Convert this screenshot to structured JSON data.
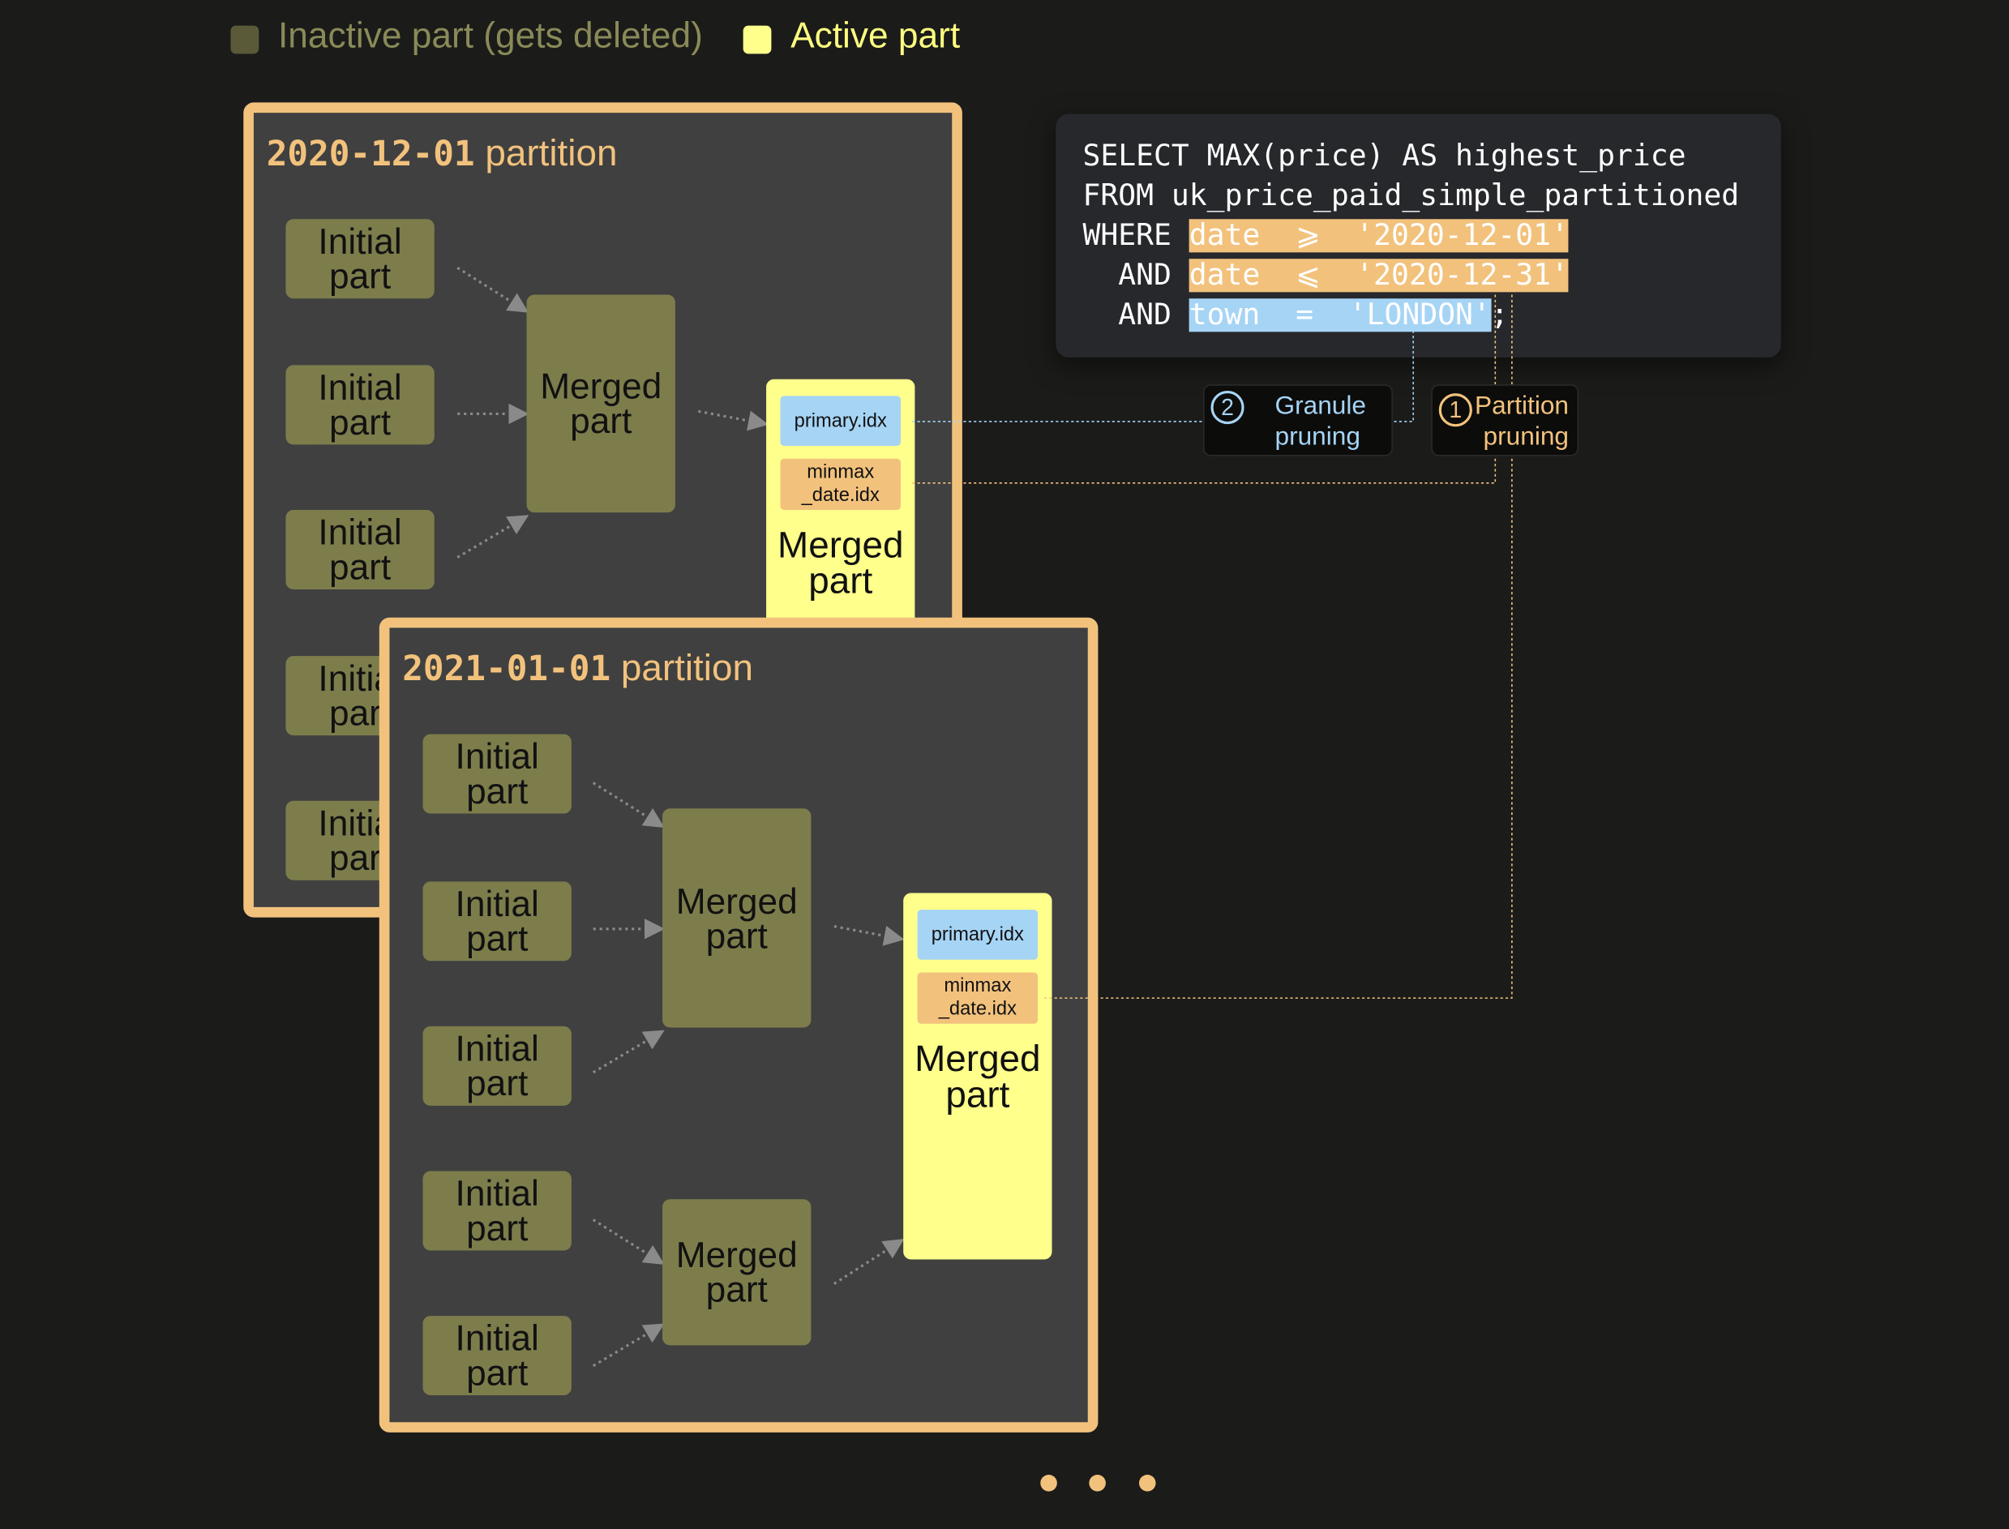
{
  "legend": {
    "inactive_label": "Inactive part (gets deleted)",
    "active_label": "Active part",
    "inactive_color": "#5a5a38",
    "active_color": "#ffff8c"
  },
  "partitions": [
    {
      "date": "2020-12-01",
      "suffix": "partition"
    },
    {
      "date": "2021-01-01",
      "suffix": "partition"
    }
  ],
  "parts": {
    "initial_line1": "Initial",
    "initial_line2": "part",
    "merged_line1": "Merged",
    "merged_line2": "part",
    "primary_idx": "primary.idx",
    "minmax_line1": "minmax",
    "minmax_line2": "_date.idx"
  },
  "sql": {
    "line1": "SELECT MAX(price) AS highest_price",
    "line2": "FROM uk_price_paid_simple_partitioned",
    "line3_kw": "WHERE ",
    "line3_cond": "date  ⩾  '2020-12-01'",
    "line4_kw": "  AND ",
    "line4_cond": "date  ⩽  '2020-12-31'",
    "line5_kw": "  AND ",
    "line5_cond": "town  =  'LONDON'",
    "line5_end": ";"
  },
  "badges": {
    "granule_num": "2",
    "granule_line1": "Granule",
    "granule_line2": "pruning",
    "partition_num": "1",
    "partition_line1": "Partition",
    "partition_line2": "pruning"
  },
  "colors": {
    "orange": "#f2c27d",
    "blue": "#a6d4f5",
    "inactive_part": "#7d7d4c",
    "active_part": "#ffff8c"
  }
}
